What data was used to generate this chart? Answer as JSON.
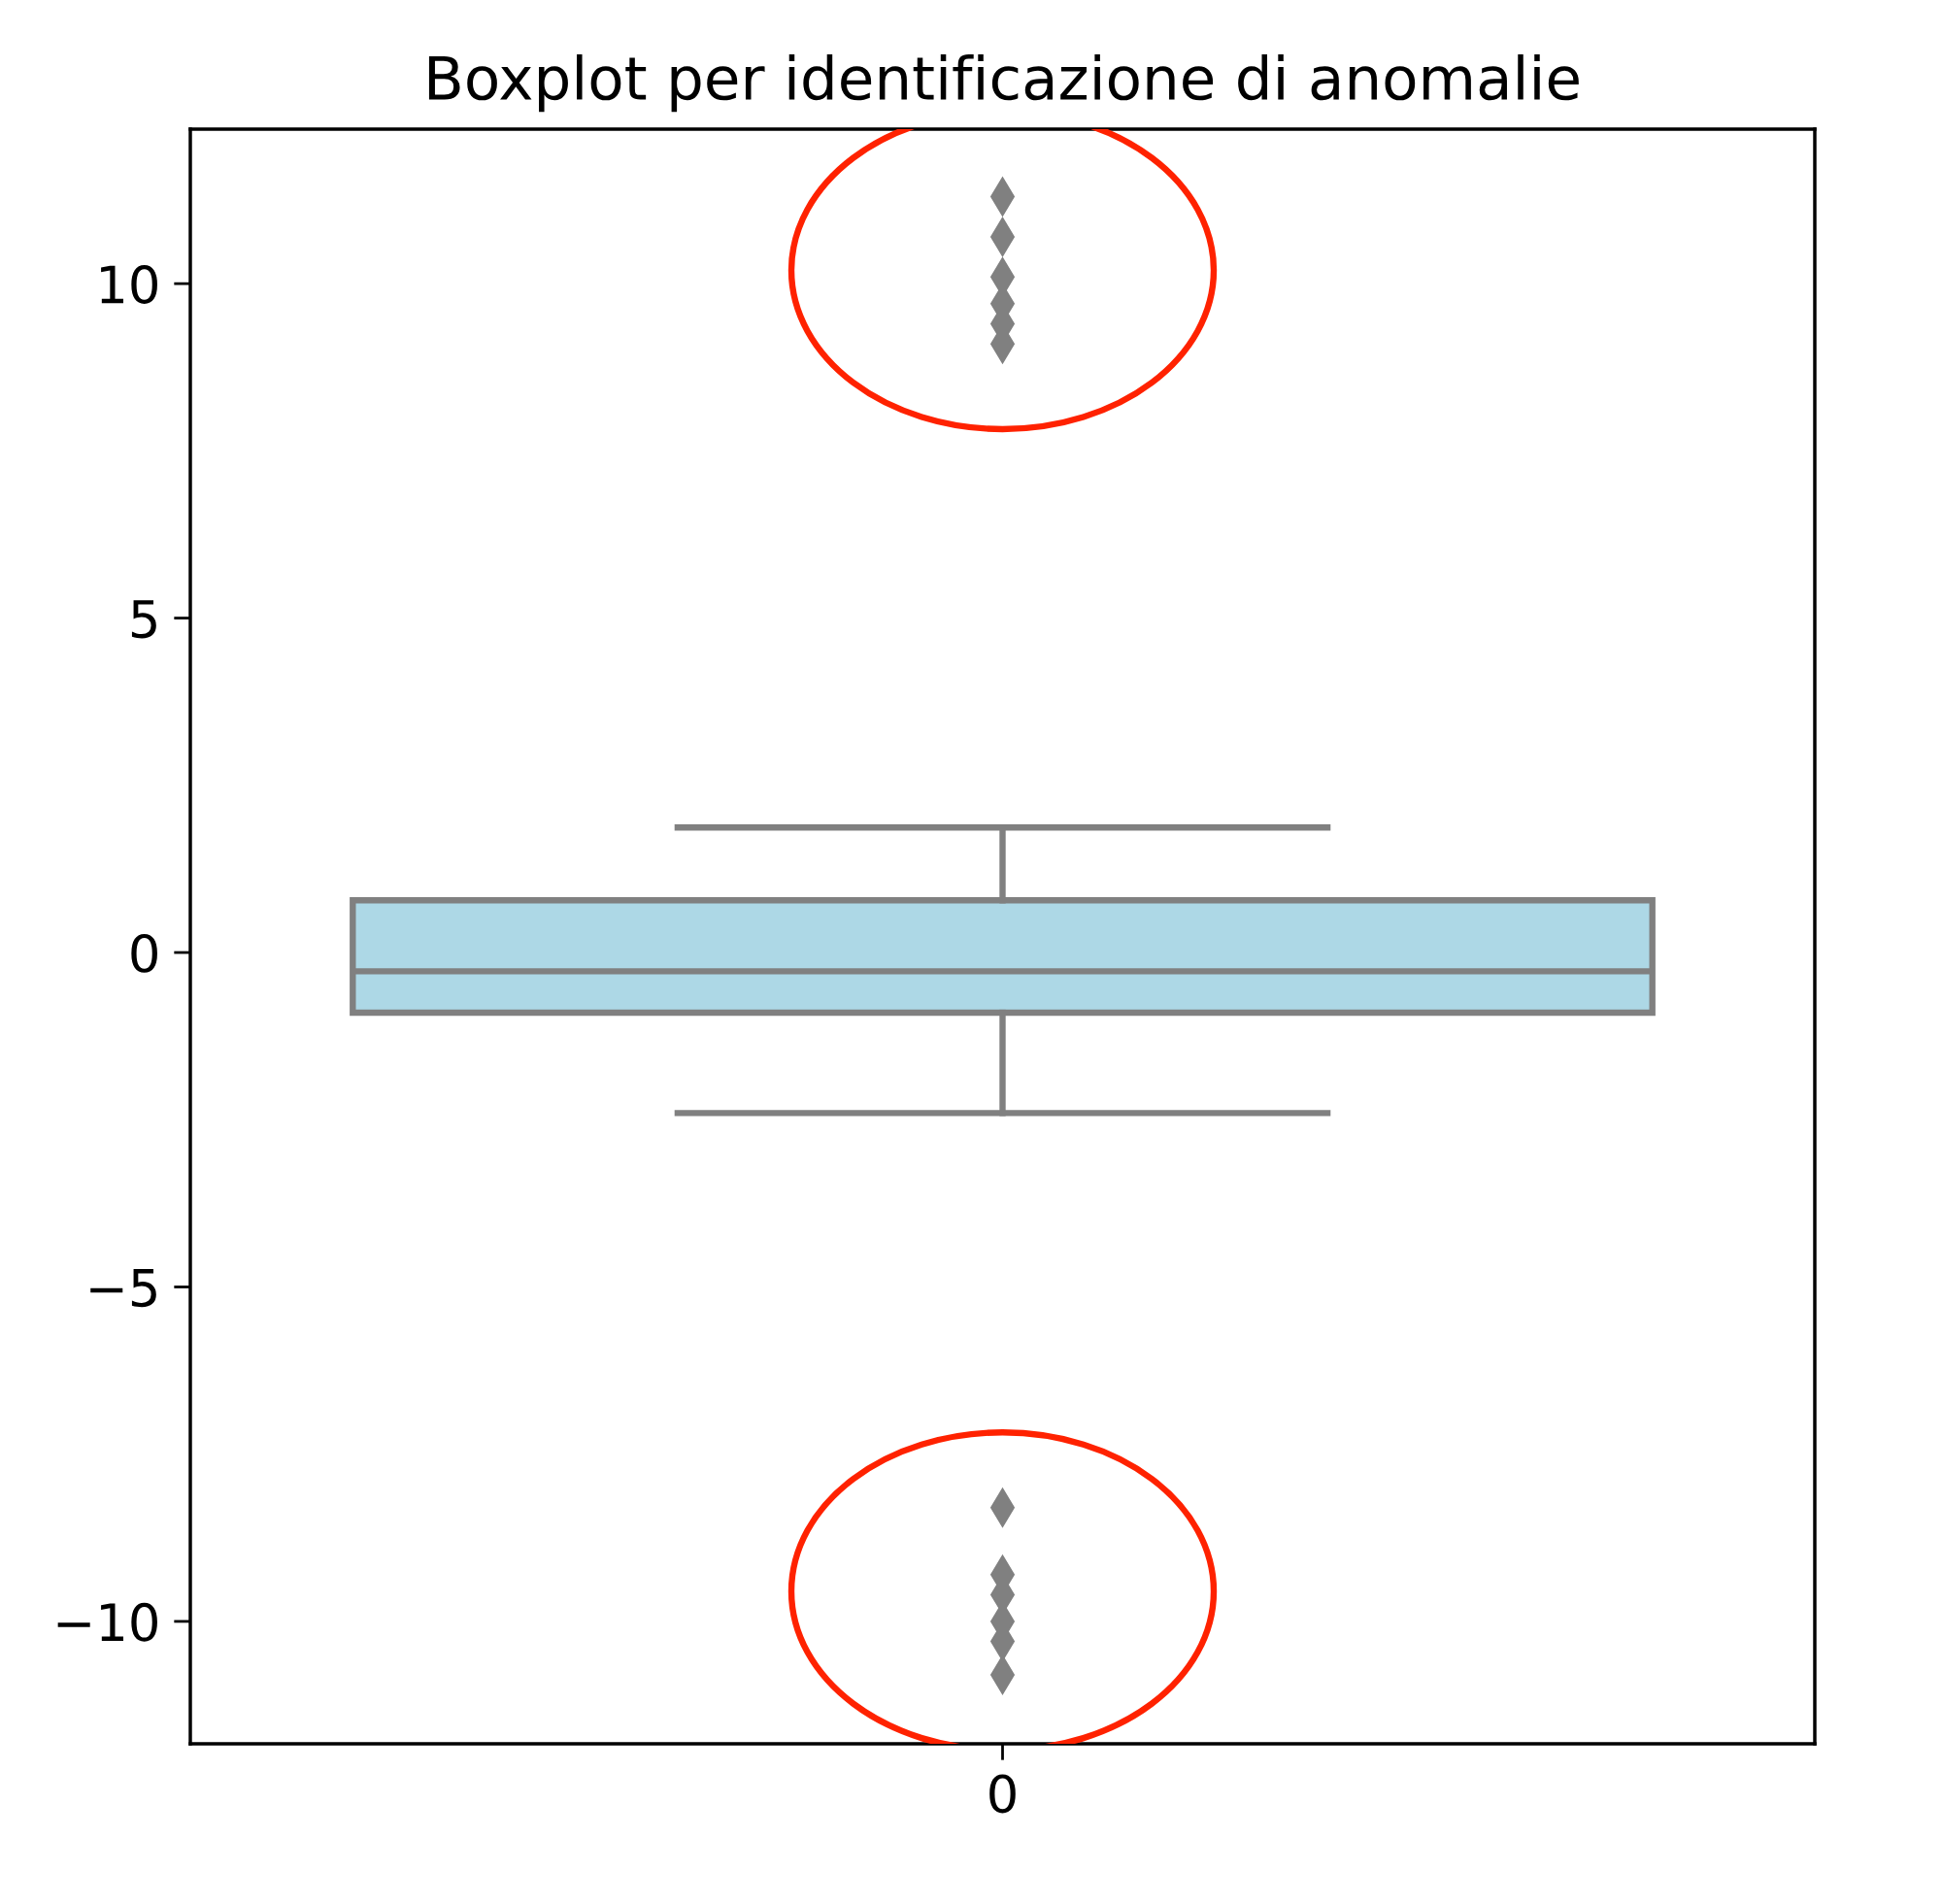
{
  "chart_data": {
    "type": "box",
    "title": "Boxplot per identificazione di anomalie",
    "categories": [
      "0"
    ],
    "boxes": [
      {
        "low": -2.4,
        "q1": -0.9,
        "median": -0.28,
        "q3": 0.78,
        "high": 1.87,
        "outliers": [
          11.3,
          10.7,
          10.1,
          9.7,
          9.4,
          9.1,
          -8.3,
          -9.3,
          -9.6,
          -10.0,
          -10.3,
          -10.8
        ]
      }
    ],
    "color": "#add8e6",
    "marker": "diamond",
    "ylim": [
      -11.83,
      12.31
    ],
    "yticks": [
      -10,
      -5,
      0,
      5,
      10
    ],
    "grid": false
  }
}
